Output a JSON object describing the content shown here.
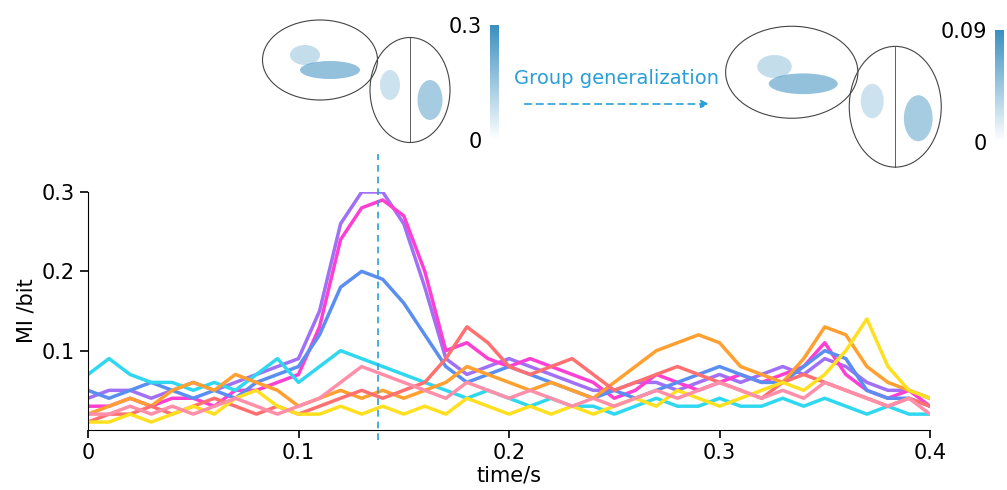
{
  "chart_data": {
    "type": "line",
    "x_label": "time/s",
    "y_label": "MI /bit",
    "xlim": [
      0,
      0.4
    ],
    "xticks": [
      0,
      0.1,
      0.2,
      0.3,
      0.4
    ],
    "ylim": [
      0,
      0.3
    ],
    "yticks": [
      0.1,
      0.2,
      0.3
    ],
    "grid": false,
    "annotation": "Group generalization",
    "peak_time": 0.138,
    "colorbars": [
      {
        "range": [
          0,
          0.3
        ],
        "ticks": [
          0,
          0.3
        ]
      },
      {
        "range": [
          0,
          0.09
        ],
        "ticks": [
          0,
          0.09
        ]
      }
    ],
    "x": [
      0,
      0.01,
      0.02,
      0.03,
      0.04,
      0.05,
      0.06,
      0.07,
      0.08,
      0.09,
      0.1,
      0.11,
      0.12,
      0.13,
      0.14,
      0.15,
      0.16,
      0.17,
      0.18,
      0.19,
      0.2,
      0.21,
      0.22,
      0.23,
      0.24,
      0.25,
      0.26,
      0.27,
      0.28,
      0.29,
      0.3,
      0.31,
      0.32,
      0.33,
      0.34,
      0.35,
      0.36,
      0.37,
      0.38,
      0.39,
      0.4
    ],
    "series": [
      {
        "color": "#a070f5",
        "values": [
          0.04,
          0.05,
          0.05,
          0.04,
          0.05,
          0.06,
          0.05,
          0.06,
          0.07,
          0.08,
          0.09,
          0.15,
          0.26,
          0.3,
          0.3,
          0.26,
          0.18,
          0.09,
          0.07,
          0.08,
          0.09,
          0.08,
          0.07,
          0.06,
          0.05,
          0.05,
          0.06,
          0.06,
          0.05,
          0.06,
          0.07,
          0.06,
          0.07,
          0.08,
          0.07,
          0.09,
          0.08,
          0.06,
          0.05,
          0.05,
          0.04
        ]
      },
      {
        "color": "#ff3fd2",
        "values": [
          0.03,
          0.03,
          0.04,
          0.03,
          0.04,
          0.04,
          0.03,
          0.05,
          0.05,
          0.06,
          0.07,
          0.13,
          0.24,
          0.28,
          0.29,
          0.27,
          0.2,
          0.1,
          0.11,
          0.09,
          0.08,
          0.09,
          0.08,
          0.07,
          0.06,
          0.04,
          0.05,
          0.07,
          0.06,
          0.05,
          0.06,
          0.07,
          0.06,
          0.07,
          0.08,
          0.11,
          0.07,
          0.05,
          0.04,
          0.05,
          0.03
        ]
      },
      {
        "color": "#5a8ef0",
        "values": [
          0.05,
          0.04,
          0.05,
          0.06,
          0.05,
          0.04,
          0.05,
          0.04,
          0.06,
          0.07,
          0.08,
          0.12,
          0.18,
          0.2,
          0.19,
          0.16,
          0.12,
          0.08,
          0.06,
          0.07,
          0.08,
          0.07,
          0.06,
          0.05,
          0.04,
          0.05,
          0.04,
          0.05,
          0.06,
          0.07,
          0.08,
          0.07,
          0.06,
          0.06,
          0.08,
          0.1,
          0.09,
          0.05,
          0.04,
          0.04,
          0.03
        ]
      },
      {
        "color": "#2fd8f0",
        "values": [
          0.07,
          0.09,
          0.07,
          0.06,
          0.06,
          0.05,
          0.06,
          0.05,
          0.07,
          0.09,
          0.06,
          0.08,
          0.1,
          0.09,
          0.08,
          0.07,
          0.06,
          0.05,
          0.04,
          0.05,
          0.04,
          0.03,
          0.04,
          0.03,
          0.03,
          0.02,
          0.03,
          0.04,
          0.03,
          0.03,
          0.04,
          0.03,
          0.03,
          0.04,
          0.03,
          0.04,
          0.03,
          0.02,
          0.03,
          0.02,
          0.02
        ]
      },
      {
        "color": "#ffa030",
        "values": [
          0.02,
          0.03,
          0.04,
          0.03,
          0.05,
          0.06,
          0.05,
          0.07,
          0.06,
          0.05,
          0.03,
          0.04,
          0.05,
          0.04,
          0.05,
          0.04,
          0.05,
          0.06,
          0.08,
          0.07,
          0.06,
          0.05,
          0.06,
          0.05,
          0.04,
          0.06,
          0.08,
          0.1,
          0.11,
          0.12,
          0.11,
          0.08,
          0.07,
          0.06,
          0.09,
          0.13,
          0.12,
          0.08,
          0.06,
          0.05,
          0.04
        ]
      },
      {
        "color": "#ff7070",
        "values": [
          0.01,
          0.02,
          0.02,
          0.03,
          0.02,
          0.03,
          0.04,
          0.03,
          0.02,
          0.03,
          0.02,
          0.03,
          0.04,
          0.05,
          0.04,
          0.05,
          0.06,
          0.09,
          0.13,
          0.11,
          0.08,
          0.07,
          0.08,
          0.09,
          0.07,
          0.05,
          0.06,
          0.07,
          0.08,
          0.07,
          0.06,
          0.05,
          0.04,
          0.06,
          0.07,
          0.06,
          0.05,
          0.04,
          0.03,
          0.04,
          0.03
        ]
      },
      {
        "color": "#ffe020",
        "values": [
          0.01,
          0.01,
          0.02,
          0.01,
          0.02,
          0.03,
          0.02,
          0.04,
          0.05,
          0.03,
          0.02,
          0.02,
          0.03,
          0.02,
          0.03,
          0.02,
          0.03,
          0.02,
          0.04,
          0.03,
          0.02,
          0.03,
          0.02,
          0.03,
          0.02,
          0.03,
          0.04,
          0.03,
          0.05,
          0.04,
          0.03,
          0.04,
          0.05,
          0.06,
          0.05,
          0.07,
          0.1,
          0.14,
          0.08,
          0.05,
          0.04
        ]
      },
      {
        "color": "#ff8fa8",
        "values": [
          0.02,
          0.02,
          0.03,
          0.02,
          0.03,
          0.02,
          0.03,
          0.04,
          0.03,
          0.02,
          0.03,
          0.04,
          0.06,
          0.08,
          0.07,
          0.06,
          0.05,
          0.04,
          0.06,
          0.05,
          0.04,
          0.05,
          0.04,
          0.03,
          0.04,
          0.03,
          0.04,
          0.05,
          0.04,
          0.05,
          0.06,
          0.05,
          0.04,
          0.05,
          0.04,
          0.06,
          0.05,
          0.04,
          0.03,
          0.04,
          0.02
        ]
      }
    ]
  }
}
